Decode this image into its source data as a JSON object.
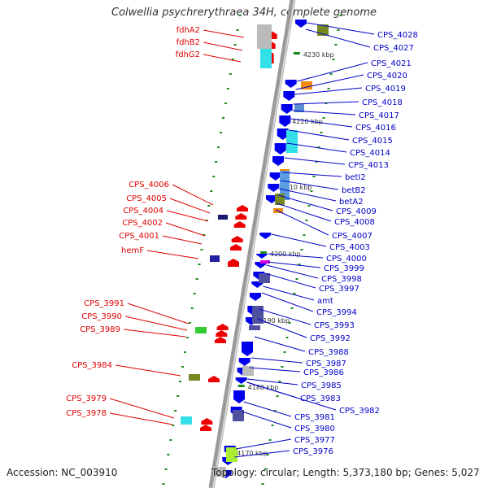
{
  "title": "Colwellia psychrerythraea 34H, complete genome",
  "accession": "Accession: NC_003910",
  "topology": "Topology: circular; Length: 5,373,180 bp; Genes: 5,027",
  "colors": {
    "left_label": "#e00000",
    "right_label": "#0000c8",
    "backbone": "#888888",
    "tick": "#1a8a1a"
  },
  "scale_labels": [
    "4230 kbp",
    "4220 kbp",
    "4210 kbp",
    "4200 kbp",
    "4190 kbp",
    "4180 kbp",
    "4170 kbp"
  ],
  "left_genes": [
    "fdhA2",
    "fdhB2",
    "fdhG2",
    "CPS_4006",
    "CPS_4005",
    "CPS_4004",
    "CPS_4002",
    "CPS_4001",
    "hemF",
    "CPS_3991",
    "CPS_3990",
    "CPS_3989",
    "CPS_3984",
    "CPS_3979",
    "CPS_3978"
  ],
  "right_genes": [
    "CPS_4028",
    "CPS_4027",
    "CPS_4021",
    "CPS_4020",
    "CPS_4019",
    "CPS_4018",
    "CPS_4017",
    "CPS_4016",
    "CPS_4015",
    "CPS_4014",
    "CPS_4013",
    "betI2",
    "betB2",
    "betA2",
    "CPS_4009",
    "CPS_4008",
    "CPS_4007",
    "CPS_4003",
    "CPS_4000",
    "CPS_3999",
    "CPS_3998",
    "CPS_3997",
    "amt",
    "CPS_3994",
    "CPS_3993",
    "CPS_3992",
    "CPS_3988",
    "CPS_3987",
    "CPS_3986",
    "CPS_3985",
    "CPS_3983",
    "CPS_3982",
    "CPS_3981",
    "CPS_3980",
    "CPS_3977",
    "CPS_3976"
  ]
}
